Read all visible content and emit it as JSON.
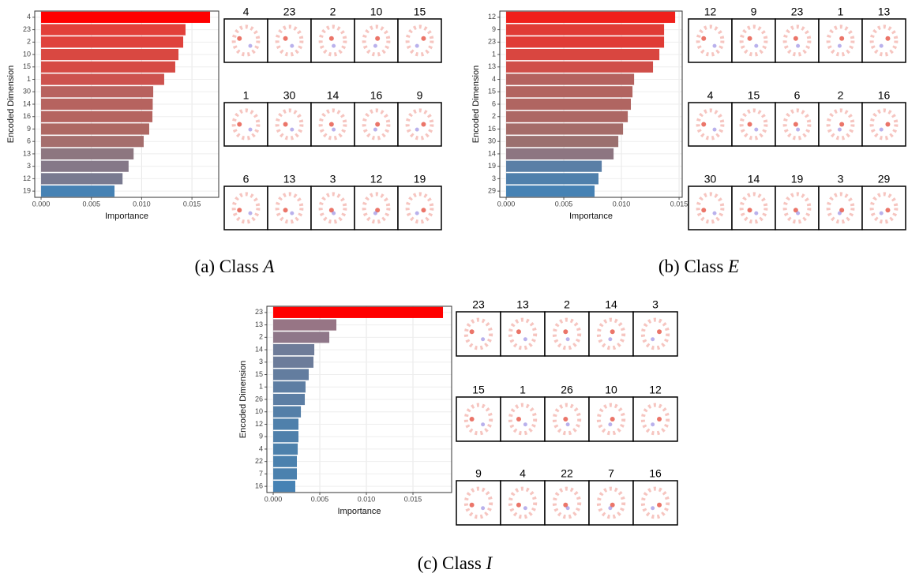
{
  "chart_data": [
    {
      "type": "bar",
      "orientation": "horizontal",
      "xlabel": "Importance",
      "ylabel": "Encoded Dimension",
      "categories": [
        "4",
        "23",
        "2",
        "10",
        "15",
        "1",
        "30",
        "14",
        "16",
        "9",
        "6",
        "13",
        "3",
        "12",
        "19"
      ],
      "values": [
        0.0168,
        0.01436,
        0.01413,
        0.01366,
        0.01334,
        0.01224,
        0.01115,
        0.0111,
        0.01107,
        0.01075,
        0.0102,
        0.0092,
        0.0087,
        0.0081,
        0.0073
      ],
      "colors": [
        "#ff0000",
        "#e2403a",
        "#df423c",
        "#d94841",
        "#d64a44",
        "#cd524e",
        "#b8625f",
        "#b6635f",
        "#b56460",
        "#ae6863",
        "#a56e6d",
        "#8d7680",
        "#857888",
        "#797a90",
        "#4682b4"
      ],
      "xlim": [
        -0.00063,
        0.01766
      ],
      "xticks": [
        {
          "value": 0,
          "label": "0.000"
        },
        {
          "value": 0.005,
          "label": "0.005"
        },
        {
          "value": 0.01,
          "label": "0.010"
        },
        {
          "value": 0.015,
          "label": "0.015"
        }
      ],
      "grid": true,
      "image_labels": [
        "4",
        "23",
        "2",
        "10",
        "15",
        "1",
        "30",
        "14",
        "16",
        "9",
        "6",
        "13",
        "3",
        "12",
        "19"
      ],
      "caption": "(a) Class",
      "class_name": "A"
    },
    {
      "type": "bar",
      "orientation": "horizontal",
      "xlabel": "Importance",
      "ylabel": "Encoded Dimension",
      "categories": [
        "12",
        "9",
        "23",
        "1",
        "13",
        "4",
        "15",
        "6",
        "2",
        "16",
        "30",
        "14",
        "19",
        "3",
        "29"
      ],
      "values": [
        0.01466,
        0.0137,
        0.0137,
        0.01329,
        0.01274,
        0.0111,
        0.01096,
        0.01082,
        0.01055,
        0.01014,
        0.00973,
        0.00932,
        0.00829,
        0.00801,
        0.00767
      ],
      "colors": [
        "#f0201b",
        "#e03c36",
        "#e03c36",
        "#d94640",
        "#d04e49",
        "#b4625f",
        "#b26460",
        "#b06561",
        "#ad6764",
        "#a56c69",
        "#9b706f",
        "#8d7581",
        "#5a7fa6",
        "#4f80ac",
        "#4682b4"
      ],
      "xlim": [
        -0.00055,
        0.01527
      ],
      "xticks": [
        {
          "value": 0,
          "label": "0.000"
        },
        {
          "value": 0.005,
          "label": "0.005"
        },
        {
          "value": 0.01,
          "label": "0.010"
        },
        {
          "value": 0.015,
          "label": "0.015"
        }
      ],
      "grid": true,
      "image_labels": [
        "12",
        "9",
        "23",
        "1",
        "13",
        "4",
        "15",
        "6",
        "2",
        "16",
        "30",
        "14",
        "19",
        "3",
        "29"
      ],
      "caption": "(b) Class",
      "class_name": "E"
    },
    {
      "type": "bar",
      "orientation": "horizontal",
      "xlabel": "Importance",
      "ylabel": "Encoded Dimension",
      "categories": [
        "23",
        "13",
        "2",
        "14",
        "3",
        "15",
        "1",
        "26",
        "10",
        "12",
        "9",
        "4",
        "22",
        "7",
        "16"
      ],
      "values": [
        0.01822,
        0.00678,
        0.00602,
        0.00441,
        0.00432,
        0.00381,
        0.00347,
        0.00339,
        0.00297,
        0.00271,
        0.00271,
        0.00263,
        0.00254,
        0.00254,
        0.00237
      ],
      "colors": [
        "#ff0000",
        "#977585",
        "#8f7789",
        "#6e7c99",
        "#6c7c9a",
        "#637d9f",
        "#5e7ea3",
        "#5c7ea4",
        "#547fa8",
        "#4f80ab",
        "#4f80ab",
        "#4d81ac",
        "#4b81ae",
        "#4b81ae",
        "#4682b4"
      ],
      "xlim": [
        -0.00068,
        0.01915
      ],
      "xticks": [
        {
          "value": 0,
          "label": "0.000"
        },
        {
          "value": 0.005,
          "label": "0.005"
        },
        {
          "value": 0.01,
          "label": "0.010"
        },
        {
          "value": 0.015,
          "label": "0.015"
        }
      ],
      "grid": true,
      "image_labels": [
        "23",
        "13",
        "2",
        "14",
        "3",
        "15",
        "1",
        "26",
        "10",
        "12",
        "9",
        "4",
        "22",
        "7",
        "16"
      ],
      "caption": "(c) Class",
      "class_name": "I"
    }
  ]
}
